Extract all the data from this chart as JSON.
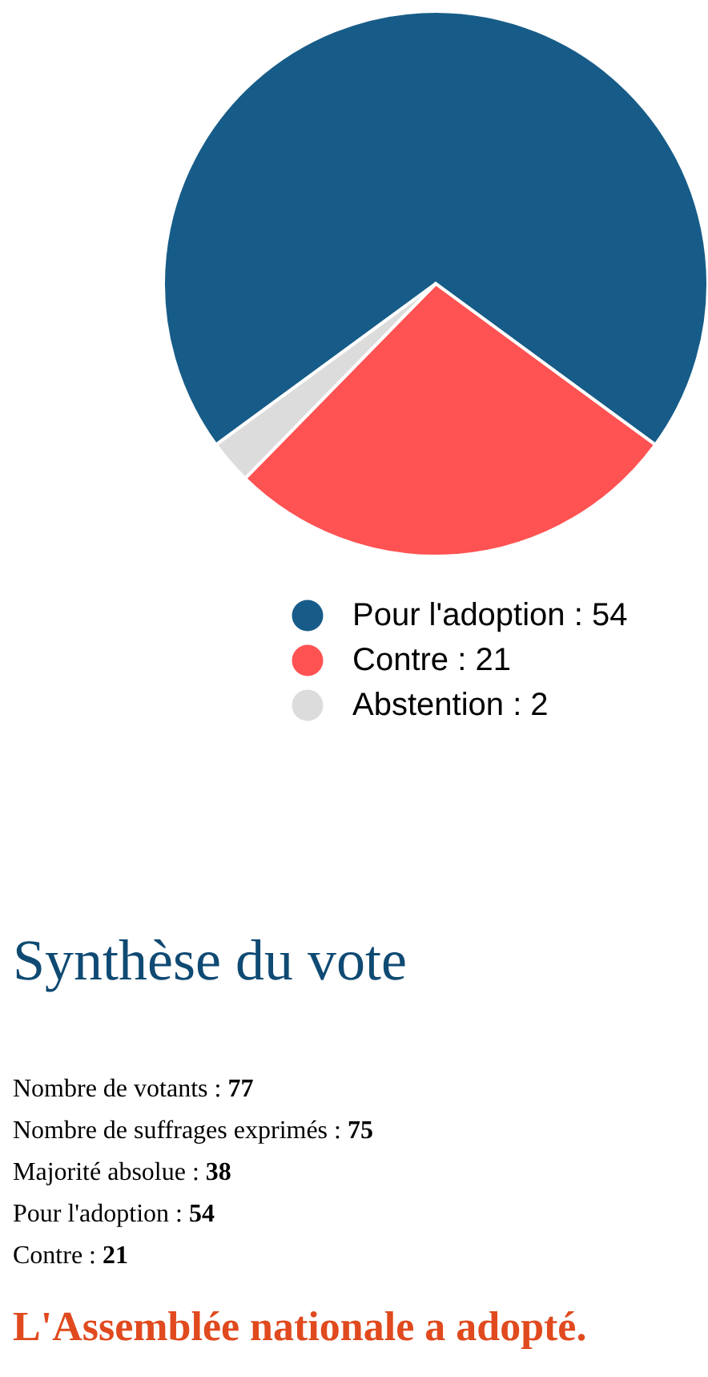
{
  "chart_data": {
    "type": "pie",
    "categories": [
      "Pour l'adoption : 54",
      "Contre : 21",
      "Abstention : 2"
    ],
    "values": [
      54,
      21,
      2
    ],
    "colors": [
      "#175c88",
      "#ff5252",
      "#dcdcdc"
    ],
    "legend": "bottom",
    "annotations": [
      "Synthèse du vote",
      "Nombre de votants : 77",
      "Nombre de suffrages exprimés : 75",
      "Majorité absolue : 38",
      "Pour l'adoption : 54",
      "Contre : 21",
      "L'Assemblée nationale a adopté."
    ]
  }
}
